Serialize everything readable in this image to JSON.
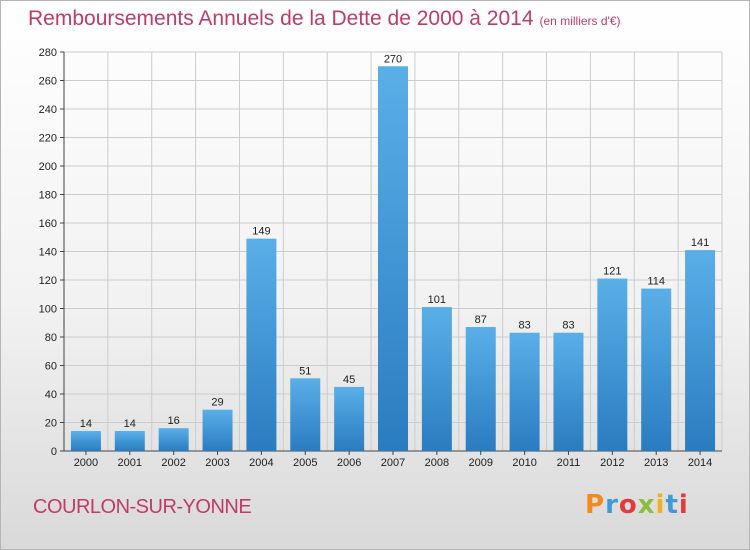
{
  "title": "Remboursements Annuels de la Dette de 2000 à 2014",
  "unit": "(en milliers d'€)",
  "city": "COURLON-SUR-YONNE",
  "logo": {
    "text": "Proxiti",
    "letters": [
      {
        "ch": "P",
        "color": "#f28a1d"
      },
      {
        "ch": "r",
        "color": "#3f9ad6"
      },
      {
        "ch": "o",
        "color": "#e23b3b"
      },
      {
        "ch": "x",
        "color": "#8cbd3b"
      },
      {
        "ch": "i",
        "color": "#f2b01d"
      },
      {
        "ch": "t",
        "color": "#3f9ad6"
      },
      {
        "ch": "i",
        "color": "#e23b3b"
      }
    ]
  },
  "colors": {
    "title": "#c23b66",
    "bar_top": "#5aafe8",
    "bar_bottom": "#2a7cc0",
    "grid": "#cccccc"
  },
  "chart_data": {
    "type": "bar",
    "categories": [
      "2000",
      "2001",
      "2002",
      "2003",
      "2004",
      "2005",
      "2006",
      "2007",
      "2008",
      "2009",
      "2010",
      "2011",
      "2012",
      "2013",
      "2014"
    ],
    "values": [
      14,
      14,
      16,
      29,
      149,
      51,
      45,
      270,
      101,
      87,
      83,
      83,
      121,
      114,
      141
    ],
    "ylim": [
      0,
      280
    ],
    "yticks": [
      0,
      20,
      40,
      60,
      80,
      100,
      120,
      140,
      160,
      180,
      200,
      220,
      240,
      260,
      280
    ],
    "grid": true,
    "legend": "none"
  }
}
